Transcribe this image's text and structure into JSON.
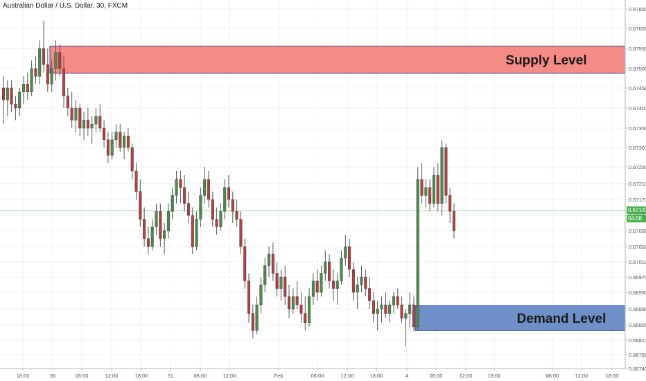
{
  "header": {
    "title": "Australian Dollar / U.S. Dollar, 30, FXCM"
  },
  "price_tag": {
    "value": "0.67142",
    "countdown": "04:08",
    "color": "#4caf50"
  },
  "zones": {
    "supply": {
      "label": "Supply Level",
      "fill": "#f48b87",
      "stroke": "#3a3d99",
      "low": 0.67488,
      "high": 0.67556
    },
    "demand": {
      "label": "Demand Level",
      "fill": "#6f8fc8",
      "stroke": "#2a3f8f",
      "low": 0.6684,
      "high": 0.66898
    }
  },
  "colors": {
    "up": "#4b8a4b",
    "down": "#b0413e",
    "wick": "#555555",
    "grid": "#eef0f3",
    "current_line": "#4caf50"
  },
  "chart_data": {
    "type": "candlestick",
    "title": "Australian Dollar / U.S. Dollar, 30, FXCM",
    "y_ticks": [
      "0.67650",
      "0.67600",
      "0.67550",
      "0.67500",
      "0.67450",
      "0.67400",
      "0.67350",
      "0.67300",
      "0.67250",
      "0.67210",
      "0.67170",
      "0.67130",
      "0.67090",
      "0.67050",
      "0.67010",
      "0.66970",
      "0.66930",
      "0.66890",
      "0.66855",
      "0.66815",
      "0.66780",
      "0.66740"
    ],
    "x_ticks": [
      "18:00",
      "30",
      "06:00",
      "12:00",
      "18:00",
      "31",
      "06:00",
      "12:00",
      "Feb",
      "06:00",
      "12:00",
      "18:00",
      "4",
      "06:00",
      "12:00",
      "18:00",
      "06:00",
      "12:00",
      "18:00"
    ],
    "current_price": 0.67142,
    "candles": [
      [
        0.6745,
        0.6748,
        0.6736,
        0.6742
      ],
      [
        0.6742,
        0.6747,
        0.6738,
        0.6745
      ],
      [
        0.6745,
        0.6747,
        0.6739,
        0.6741
      ],
      [
        0.6741,
        0.6743,
        0.6737,
        0.674
      ],
      [
        0.674,
        0.6745,
        0.6738,
        0.6744
      ],
      [
        0.6744,
        0.6748,
        0.6741,
        0.6746
      ],
      [
        0.6746,
        0.6749,
        0.6742,
        0.6744
      ],
      [
        0.6744,
        0.6752,
        0.6743,
        0.675
      ],
      [
        0.675,
        0.6753,
        0.6746,
        0.6748
      ],
      [
        0.6748,
        0.6757,
        0.6746,
        0.6755
      ],
      [
        0.6755,
        0.6762,
        0.6749,
        0.6751
      ],
      [
        0.6751,
        0.6755,
        0.6744,
        0.6746
      ],
      [
        0.6746,
        0.6752,
        0.6744,
        0.675
      ],
      [
        0.675,
        0.6757,
        0.6747,
        0.6754
      ],
      [
        0.6754,
        0.6756,
        0.6748,
        0.675
      ],
      [
        0.675,
        0.6753,
        0.674,
        0.6743
      ],
      [
        0.6743,
        0.6745,
        0.6738,
        0.674
      ],
      [
        0.674,
        0.6744,
        0.6735,
        0.6737
      ],
      [
        0.6737,
        0.6742,
        0.6734,
        0.674
      ],
      [
        0.674,
        0.6741,
        0.6733,
        0.6735
      ],
      [
        0.6735,
        0.6739,
        0.6732,
        0.6737
      ],
      [
        0.6737,
        0.674,
        0.6733,
        0.6735
      ],
      [
        0.6735,
        0.6738,
        0.6731,
        0.6736
      ],
      [
        0.6736,
        0.674,
        0.6734,
        0.6738
      ],
      [
        0.6738,
        0.6741,
        0.6734,
        0.6735
      ],
      [
        0.6735,
        0.6737,
        0.673,
        0.6732
      ],
      [
        0.6732,
        0.6734,
        0.6726,
        0.6728
      ],
      [
        0.6728,
        0.6734,
        0.6727,
        0.6732
      ],
      [
        0.6732,
        0.6736,
        0.673,
        0.6734
      ],
      [
        0.6734,
        0.6736,
        0.6729,
        0.673
      ],
      [
        0.673,
        0.6734,
        0.6727,
        0.6733
      ],
      [
        0.6733,
        0.6735,
        0.6729,
        0.673
      ],
      [
        0.673,
        0.6731,
        0.6722,
        0.6724
      ],
      [
        0.6724,
        0.6726,
        0.6717,
        0.6719
      ],
      [
        0.6719,
        0.6722,
        0.671,
        0.6712
      ],
      [
        0.6712,
        0.6715,
        0.6705,
        0.6707
      ],
      [
        0.6707,
        0.671,
        0.6703,
        0.6705
      ],
      [
        0.6705,
        0.6712,
        0.6704,
        0.671
      ],
      [
        0.671,
        0.6716,
        0.6708,
        0.6714
      ],
      [
        0.6714,
        0.6716,
        0.6705,
        0.6707
      ],
      [
        0.6707,
        0.6711,
        0.6703,
        0.6709
      ],
      [
        0.6709,
        0.6716,
        0.6707,
        0.6714
      ],
      [
        0.6714,
        0.672,
        0.6712,
        0.6718
      ],
      [
        0.6718,
        0.6724,
        0.6716,
        0.6722
      ],
      [
        0.6722,
        0.6724,
        0.6716,
        0.672
      ],
      [
        0.672,
        0.6723,
        0.6714,
        0.6716
      ],
      [
        0.6716,
        0.6719,
        0.6711,
        0.6713
      ],
      [
        0.6713,
        0.6715,
        0.6703,
        0.6705
      ],
      [
        0.6705,
        0.6714,
        0.6704,
        0.6712
      ],
      [
        0.6712,
        0.672,
        0.671,
        0.6718
      ],
      [
        0.6718,
        0.6725,
        0.6716,
        0.6722
      ],
      [
        0.6722,
        0.6724,
        0.6715,
        0.6717
      ],
      [
        0.6717,
        0.6719,
        0.671,
        0.6712
      ],
      [
        0.6712,
        0.6715,
        0.6708,
        0.671
      ],
      [
        0.671,
        0.6716,
        0.6709,
        0.6714
      ],
      [
        0.6714,
        0.6722,
        0.6712,
        0.672
      ],
      [
        0.672,
        0.6723,
        0.6715,
        0.6717
      ],
      [
        0.6717,
        0.6719,
        0.6711,
        0.6714
      ],
      [
        0.6714,
        0.6717,
        0.671,
        0.6712
      ],
      [
        0.6712,
        0.6714,
        0.6703,
        0.6705
      ],
      [
        0.6705,
        0.6707,
        0.6694,
        0.6696
      ],
      [
        0.6696,
        0.6698,
        0.6686,
        0.6688
      ],
      [
        0.6688,
        0.669,
        0.6682,
        0.6684
      ],
      [
        0.6684,
        0.6692,
        0.6683,
        0.669
      ],
      [
        0.669,
        0.6697,
        0.6688,
        0.6695
      ],
      [
        0.6695,
        0.6702,
        0.6693,
        0.67
      ],
      [
        0.67,
        0.6705,
        0.6697,
        0.6703
      ],
      [
        0.6703,
        0.6706,
        0.6696,
        0.6698
      ],
      [
        0.6698,
        0.6701,
        0.6692,
        0.6694
      ],
      [
        0.6694,
        0.6699,
        0.6691,
        0.6697
      ],
      [
        0.6697,
        0.67,
        0.669,
        0.6692
      ],
      [
        0.6692,
        0.6695,
        0.6687,
        0.6689
      ],
      [
        0.6689,
        0.6694,
        0.6688,
        0.6692
      ],
      [
        0.6692,
        0.6696,
        0.6689,
        0.669
      ],
      [
        0.669,
        0.6693,
        0.6686,
        0.6688
      ],
      [
        0.6688,
        0.6692,
        0.6684,
        0.6686
      ],
      [
        0.6686,
        0.6694,
        0.6685,
        0.6692
      ],
      [
        0.6692,
        0.6698,
        0.669,
        0.6696
      ],
      [
        0.6696,
        0.6699,
        0.6691,
        0.6693
      ],
      [
        0.6693,
        0.67,
        0.6692,
        0.6698
      ],
      [
        0.6698,
        0.6704,
        0.6696,
        0.6701
      ],
      [
        0.6701,
        0.6703,
        0.6694,
        0.6696
      ],
      [
        0.6696,
        0.6699,
        0.6691,
        0.6694
      ],
      [
        0.6694,
        0.6698,
        0.669,
        0.6696
      ],
      [
        0.6696,
        0.6704,
        0.6695,
        0.6702
      ],
      [
        0.6702,
        0.6708,
        0.67,
        0.6705
      ],
      [
        0.6705,
        0.6707,
        0.6697,
        0.6699
      ],
      [
        0.6699,
        0.6701,
        0.6691,
        0.6693
      ],
      [
        0.6693,
        0.6697,
        0.6689,
        0.6695
      ],
      [
        0.6695,
        0.67,
        0.6693,
        0.6697
      ],
      [
        0.6697,
        0.6699,
        0.6692,
        0.6694
      ],
      [
        0.6694,
        0.6697,
        0.6689,
        0.6691
      ],
      [
        0.6691,
        0.6693,
        0.6686,
        0.6688
      ],
      [
        0.6688,
        0.6691,
        0.6684,
        0.6689
      ],
      [
        0.6689,
        0.6692,
        0.6686,
        0.669
      ],
      [
        0.669,
        0.6693,
        0.6687,
        0.6688
      ],
      [
        0.6688,
        0.6691,
        0.6686,
        0.669
      ],
      [
        0.669,
        0.6693,
        0.6688,
        0.6692
      ],
      [
        0.6692,
        0.6694,
        0.6689,
        0.669
      ],
      [
        0.669,
        0.6692,
        0.6686,
        0.6687
      ],
      [
        0.6687,
        0.6689,
        0.668,
        0.6688
      ],
      [
        0.6688,
        0.6693,
        0.6685,
        0.669
      ],
      [
        0.669,
        0.6692,
        0.6684,
        0.6685
      ],
      [
        0.6685,
        0.6725,
        0.6684,
        0.6722
      ],
      [
        0.6722,
        0.6726,
        0.6716,
        0.6718
      ],
      [
        0.6718,
        0.6722,
        0.6715,
        0.672
      ],
      [
        0.672,
        0.6722,
        0.6714,
        0.6716
      ],
      [
        0.6716,
        0.6725,
        0.6715,
        0.6723
      ],
      [
        0.6723,
        0.6726,
        0.6714,
        0.6716
      ],
      [
        0.6716,
        0.6732,
        0.6713,
        0.673
      ],
      [
        0.673,
        0.6731,
        0.6716,
        0.6718
      ],
      [
        0.6718,
        0.672,
        0.6711,
        0.6714
      ],
      [
        0.6714,
        0.6716,
        0.6707,
        0.6709
      ]
    ]
  }
}
